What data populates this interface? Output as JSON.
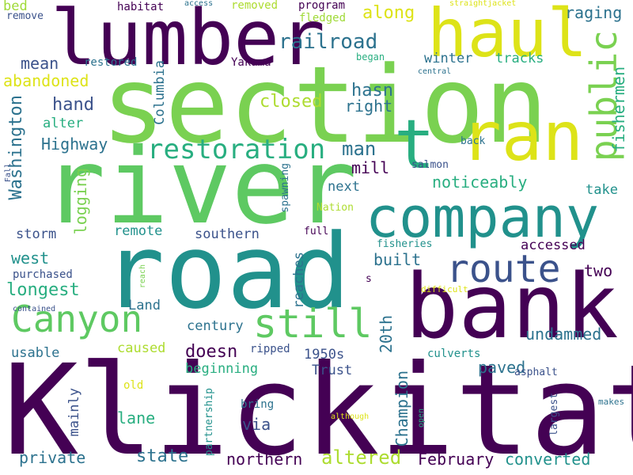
{
  "palette": {
    "dark_purple": "#440154",
    "indigo": "#3b528b",
    "teal_blue": "#2c728e",
    "teal": "#21918c",
    "green_teal": "#28ae80",
    "green": "#5ec962",
    "lime": "#addc30",
    "yellow": "#fde725"
  },
  "words": {
    "klickitat": "Klickitat",
    "section": "section",
    "river": "river",
    "road": "road",
    "bank": "bank",
    "lumber": "lumber",
    "haul": "haul",
    "ran": "ran",
    "company": "company",
    "route": "route",
    "still": "still",
    "canyon": "Canyon",
    "public": "public",
    "restoration": "restoration",
    "t": "t",
    "railroad": "railroad",
    "along": "along",
    "raging": "raging",
    "remove": "remove",
    "bed": "bed",
    "habitat": "habitat",
    "access": "access",
    "removed": "removed",
    "program": "program",
    "fledged": "fledged",
    "straightjacket": "straightjacket",
    "winter": "winter",
    "tracks": "tracks",
    "mean": "mean",
    "restored": "restored",
    "yakama": "Yakama",
    "began": "began",
    "central": "central",
    "abandoned": "abandoned",
    "hasn": "hasn",
    "closed": "closed",
    "right": "right",
    "hand": "hand",
    "alter": "alter",
    "highway": "Highway",
    "columbia": "Columbia",
    "washington": "Washington",
    "fishermen": "fishermen",
    "back": "back",
    "man": "man",
    "mill": "mill",
    "salmon": "salmon",
    "noticeably": "noticeably",
    "take": "take",
    "next": "next",
    "nation": "Nation",
    "spawning": "spawning",
    "logging": "logging",
    "storm": "storm",
    "remote": "remote",
    "southern": "southern",
    "full": "full",
    "fisheries": "fisheries",
    "accessed": "accessed",
    "west": "west",
    "built": "built",
    "two": "two",
    "purchased": "purchased",
    "reach": "reach",
    "longest": "longest",
    "reaches": "reaches",
    "s": "s",
    "land": "Land",
    "difficult": "difficult",
    "contained": "contained",
    "century": "century",
    "twentieth": "20th",
    "undammed": "undammed",
    "caused": "caused",
    "doesn": "doesn",
    "ripped": "ripped",
    "fifties": "1950s",
    "culverts": "culverts",
    "usable": "usable",
    "beginning": "beginning",
    "paved": "paved",
    "trust": "Trust",
    "asphalt": "asphalt",
    "old": "old",
    "mainly": "mainly",
    "champion": "Champion",
    "partnership": "partnership",
    "bring": "bring",
    "although": "although",
    "open": "open",
    "largest": "largest",
    "makes": "makes",
    "lane": "lane",
    "via": "via",
    "private": "private",
    "state": "state",
    "northern": "northern",
    "altered": "altered",
    "february": "February",
    "converted": "converted",
    "fall": "Fall"
  }
}
